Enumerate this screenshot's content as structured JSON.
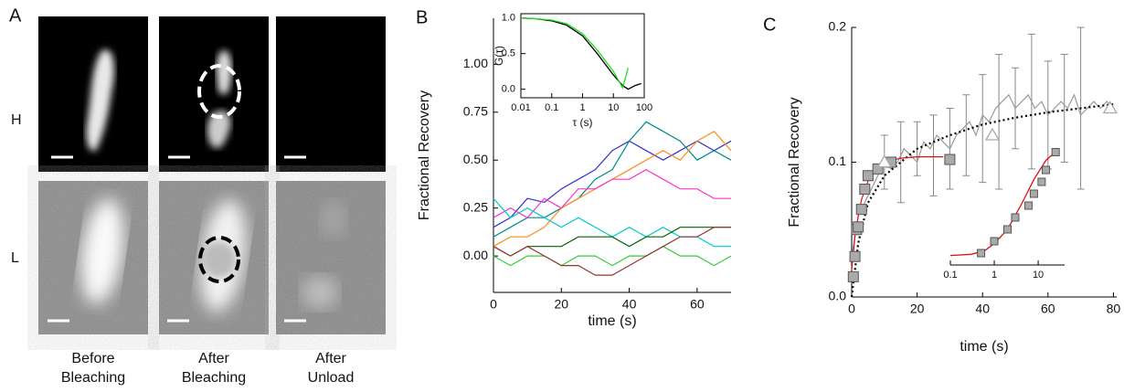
{
  "panel_a": {
    "label": "A",
    "rows": [
      "H",
      "L"
    ],
    "columns": [
      [
        "Before",
        "Bleaching"
      ],
      [
        "After",
        "Bleaching"
      ],
      [
        "After",
        "Unload"
      ]
    ]
  },
  "chart_data": [
    {
      "type": "line",
      "title": "B",
      "x_label": "time (s)",
      "y_label": "Fractional Recovery",
      "x": [
        0,
        5,
        10,
        15,
        20,
        25,
        30,
        35,
        40,
        45,
        50,
        55,
        60,
        65,
        70
      ],
      "xlim": [
        0,
        70
      ],
      "xticks": [
        0,
        20,
        40,
        60
      ],
      "ylim": [
        -0.19,
        1.24
      ],
      "yticks": [
        {
          "value": 0,
          "label": "0.00"
        },
        {
          "value": 0.25,
          "label": "0.25"
        },
        {
          "value": 0.5,
          "label": "0.50"
        },
        {
          "value": 0.75,
          "label": "0.75"
        },
        {
          "value": 1,
          "label": "1.00"
        }
      ],
      "series": [
        {
          "color": "#3333cc",
          "values": [
            0.15,
            0.2,
            0.3,
            0.28,
            0.35,
            0.4,
            0.45,
            0.55,
            0.6,
            0.55,
            0.5,
            0.55,
            0.6,
            0.55,
            0.6
          ]
        },
        {
          "color": "#008b8b",
          "values": [
            0.1,
            0.15,
            0.2,
            0.2,
            0.25,
            0.3,
            0.4,
            0.45,
            0.6,
            0.7,
            0.65,
            0.6,
            0.5,
            0.55,
            0.5
          ]
        },
        {
          "color": "#ff8c1a",
          "values": [
            0.05,
            0.1,
            0.1,
            0.15,
            0.25,
            0.3,
            0.35,
            0.4,
            0.45,
            0.5,
            0.55,
            0.5,
            0.6,
            0.65,
            0.55
          ]
        },
        {
          "color": "#ff33cc",
          "values": [
            0.2,
            0.25,
            0.2,
            0.3,
            0.25,
            0.35,
            0.35,
            0.4,
            0.4,
            0.45,
            0.4,
            0.35,
            0.35,
            0.3,
            0.3
          ]
        },
        {
          "color": "#00cccc",
          "values": [
            0.3,
            0.2,
            0.25,
            0.2,
            0.15,
            0.2,
            0.15,
            0.1,
            0.15,
            0.1,
            0.15,
            0.1,
            0.1,
            0.05,
            0.05
          ]
        },
        {
          "color": "#006400",
          "values": [
            0.05,
            0,
            0.05,
            0.05,
            0.05,
            0.1,
            0.1,
            0.1,
            0.05,
            0.1,
            0.1,
            0.15,
            0.15,
            0.15,
            0.15
          ]
        },
        {
          "color": "#33cc33",
          "values": [
            0,
            -0.05,
            0,
            0,
            -0.05,
            0,
            0,
            -0.05,
            0,
            0,
            0.05,
            0,
            0,
            -0.05,
            0
          ]
        },
        {
          "color": "#993333",
          "values": [
            0.05,
            0,
            0.05,
            0,
            -0.05,
            -0.05,
            -0.1,
            -0.1,
            -0.05,
            0,
            0.05,
            0.1,
            0.1,
            0.15,
            0.15
          ]
        }
      ]
    },
    {
      "type": "line",
      "x_label": "τ (s)",
      "y_label": "G(τ)",
      "xlog": true,
      "x": [
        0.01,
        0.03,
        0.1,
        0.3,
        1,
        3,
        10,
        20,
        30,
        50,
        80
      ],
      "xlim": [
        0.01,
        100
      ],
      "xticks": [
        0.01,
        0.1,
        1,
        10,
        100
      ],
      "ylim": [
        -0.12,
        1.06
      ],
      "yticks": [
        {
          "value": 0,
          "label": "0.0"
        },
        {
          "value": 0.5,
          "label": "0.5"
        },
        {
          "value": 1,
          "label": "1.0"
        }
      ],
      "series": [
        {
          "color": "#000000",
          "values": [
            1.0,
            0.99,
            0.96,
            0.9,
            0.75,
            0.5,
            0.2,
            0.05,
            0.0,
            0.05,
            0.08
          ]
        },
        {
          "color": "#22dd22",
          "values": [
            1.0,
            0.99,
            0.97,
            0.92,
            0.78,
            0.55,
            0.25,
            0.02,
            0.3,
            null,
            null
          ]
        }
      ]
    },
    {
      "type": "line",
      "title": "C",
      "x_label": "time (s)",
      "y_label": "Fractional Recovery",
      "xlim": [
        0,
        81
      ],
      "xticks": [
        0,
        20,
        40,
        60,
        80
      ],
      "ylim": [
        0,
        0.2
      ],
      "yticks": [
        {
          "value": 0,
          "label": "0.0"
        },
        {
          "value": 0.1,
          "label": "0.1"
        },
        {
          "value": 0.2,
          "label": "0.2"
        }
      ],
      "series": [
        {
          "marker": "errorbar",
          "color": "#888888",
          "x": [
            10,
            15,
            20,
            25,
            30,
            35,
            40,
            45,
            50,
            55,
            60,
            65,
            70
          ],
          "values": [
            0.1,
            0.1,
            0.11,
            0.105,
            0.11,
            0.12,
            0.125,
            0.13,
            0.14,
            0.145,
            0.135,
            0.14,
            0.14
          ],
          "errors": [
            0.02,
            0.03,
            0.02,
            0.03,
            0.03,
            0.03,
            0.04,
            0.05,
            0.03,
            0.05,
            0.04,
            0.04,
            0.06
          ]
        },
        {
          "marker": "line",
          "color": "#999999",
          "x": [
            0,
            2,
            4,
            6,
            8,
            10,
            12,
            14,
            16,
            18,
            20,
            22,
            24,
            26,
            28,
            30,
            32,
            34,
            36,
            38,
            40,
            42,
            44,
            46,
            48,
            50,
            52,
            54,
            56,
            58,
            60,
            62,
            64,
            66,
            68,
            70,
            72,
            74,
            76,
            78,
            80
          ],
          "values": [
            0.03,
            0.06,
            0.07,
            0.08,
            0.09,
            0.1,
            0.095,
            0.1,
            0.11,
            0.105,
            0.1,
            0.115,
            0.11,
            0.12,
            0.115,
            0.11,
            0.12,
            0.125,
            0.13,
            0.12,
            0.135,
            0.13,
            0.14,
            0.145,
            0.15,
            0.14,
            0.145,
            0.15,
            0.14,
            0.145,
            0.135,
            0.14,
            0.145,
            0.14,
            0.15,
            0.135,
            0.14,
            0.145,
            0.14,
            0.145,
            0.14
          ]
        },
        {
          "marker": "dotted",
          "color": "#000000",
          "x": [
            0,
            2,
            5,
            10,
            15,
            20,
            30,
            40,
            50,
            60,
            70,
            80
          ],
          "values": [
            0,
            0.04,
            0.07,
            0.09,
            0.1,
            0.11,
            0.12,
            0.128,
            0.133,
            0.137,
            0.14,
            0.143
          ]
        },
        {
          "marker": "line",
          "color": "#dd1111",
          "x": [
            0,
            1,
            2,
            3,
            5,
            7,
            10,
            15,
            20,
            28
          ],
          "values": [
            0.02,
            0.045,
            0.06,
            0.072,
            0.086,
            0.094,
            0.1,
            0.103,
            0.104,
            0.104
          ]
        },
        {
          "marker": "square",
          "color": "#aaaaaa",
          "x": [
            0.5,
            1,
            1.5,
            2,
            3,
            4,
            5,
            8,
            12,
            30
          ],
          "values": [
            0.015,
            0.03,
            0.05,
            0.052,
            0.065,
            0.08,
            0.09,
            0.095,
            0.1,
            0.102
          ]
        },
        {
          "marker": "triangle",
          "color": "#aaaaaa",
          "x": [
            10,
            43,
            79
          ],
          "values": [
            0.1,
            0.12,
            0.14
          ]
        }
      ]
    },
    {
      "type": "line",
      "xlog": true,
      "xlim": [
        0.1,
        40
      ],
      "xticks": [
        0.1,
        1,
        10
      ],
      "ylim": [
        0,
        1
      ],
      "series": [
        {
          "marker": "line",
          "color": "#dd1111",
          "x": [
            0.1,
            0.3,
            0.6,
            1,
            2,
            4,
            8,
            15,
            30
          ],
          "values": [
            0.08,
            0.09,
            0.12,
            0.18,
            0.3,
            0.5,
            0.72,
            0.88,
            0.98
          ]
        },
        {
          "marker": "square",
          "color": "#aaaaaa",
          "x": [
            0.5,
            1,
            2,
            3,
            6,
            8,
            12,
            15,
            25
          ],
          "values": [
            0.1,
            0.2,
            0.3,
            0.4,
            0.5,
            0.6,
            0.7,
            0.8,
            0.95
          ]
        }
      ]
    }
  ]
}
